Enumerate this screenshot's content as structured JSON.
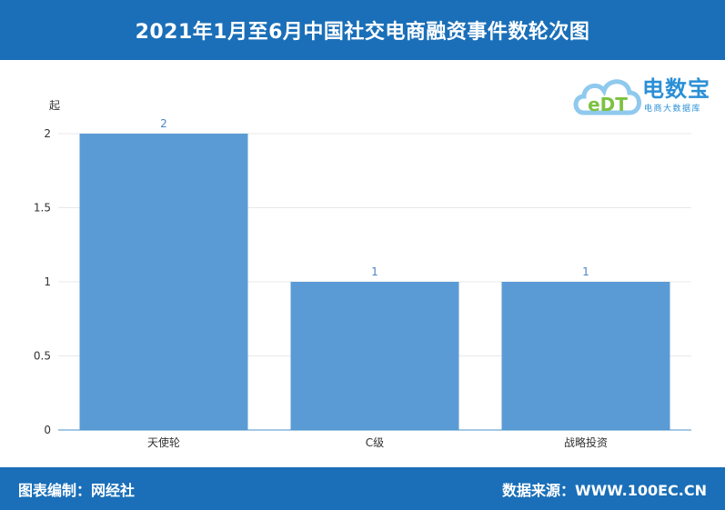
{
  "header": {
    "title": "2021年1月至6月中国社交电商融资事件数轮次图"
  },
  "footer": {
    "left_text": "图表编制：网经社",
    "right_text": "数据来源：WWW.100EC.CN"
  },
  "logo": {
    "brand": "电数宝",
    "tagline": "电商大数据库",
    "mark": "eDT"
  },
  "colors": {
    "bar": "#5b9bd5",
    "header_bg": "#1a6fb8",
    "grid": "#e8e8e8",
    "axis": "#4a90c8"
  },
  "chart_data": {
    "type": "bar",
    "categories": [
      "天使轮",
      "C级",
      "战略投资"
    ],
    "values": [
      2,
      1,
      1
    ],
    "data_labels": [
      "2",
      "1",
      "1"
    ],
    "ylabel": "起",
    "ylim": [
      0,
      2
    ],
    "yticks": [
      0,
      0.5,
      1,
      1.5,
      2
    ],
    "ytick_labels": [
      "0",
      "0.5",
      "1",
      "1.5",
      "2"
    ],
    "grid": true
  }
}
